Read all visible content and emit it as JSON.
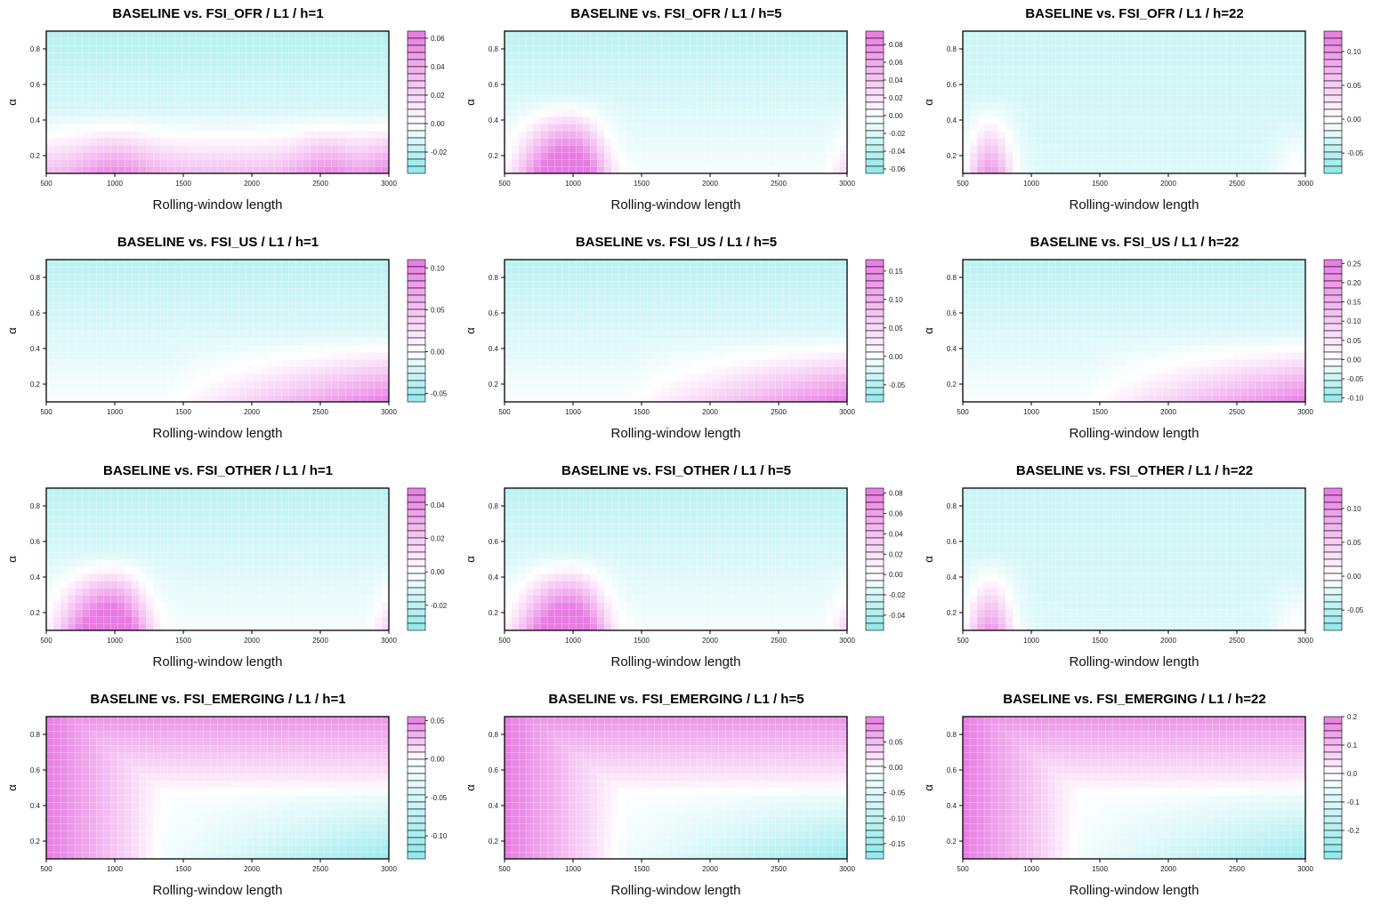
{
  "colors": {
    "low": "#8fe8ea",
    "mid": "#ffffff",
    "high": "#e87ae3",
    "axis": "#000000"
  },
  "chart_data": [
    {
      "type": "heatmap",
      "title": "BASELINE vs. FSI_OFR / L1 / h=1",
      "xlabel": "Rolling-window length",
      "ylabel": "α",
      "x_ticks": [
        500,
        1000,
        1500,
        2000,
        2500,
        3000
      ],
      "y_ticks": [
        0.2,
        0.4,
        0.6,
        0.8
      ],
      "xlim": [
        500,
        3000
      ],
      "ylim": [
        0.1,
        0.9
      ],
      "zlim": [
        -0.035,
        0.065
      ],
      "colorbar_ticks": [
        "0.06",
        "0.04",
        "0.02",
        "0.00",
        "-0.02"
      ],
      "colorbar_values": [
        0.06,
        0.04,
        0.02,
        0.0,
        -0.02
      ],
      "pattern": "lowband"
    },
    {
      "type": "heatmap",
      "title": "BASELINE vs. FSI_OFR / L1 / h=5",
      "xlabel": "Rolling-window length",
      "ylabel": "α",
      "x_ticks": [
        500,
        1000,
        1500,
        2000,
        2500,
        3000
      ],
      "y_ticks": [
        0.2,
        0.4,
        0.6,
        0.8
      ],
      "xlim": [
        500,
        3000
      ],
      "ylim": [
        0.1,
        0.9
      ],
      "zlim": [
        -0.065,
        0.095
      ],
      "colorbar_ticks": [
        "0.08",
        "0.06",
        "0.04",
        "0.02",
        "0.00",
        "-0.02",
        "-0.04",
        "-0.06"
      ],
      "colorbar_values": [
        0.08,
        0.06,
        0.04,
        0.02,
        0.0,
        -0.02,
        -0.04,
        -0.06
      ],
      "pattern": "bumps"
    },
    {
      "type": "heatmap",
      "title": "BASELINE vs. FSI_OFR / L1 / h=22",
      "xlabel": "Rolling-window length",
      "ylabel": "α",
      "x_ticks": [
        500,
        1000,
        1500,
        2000,
        2500,
        3000
      ],
      "y_ticks": [
        0.2,
        0.4,
        0.6,
        0.8
      ],
      "xlim": [
        500,
        3000
      ],
      "ylim": [
        0.1,
        0.9
      ],
      "zlim": [
        -0.08,
        0.13
      ],
      "colorbar_ticks": [
        "0.10",
        "0.05",
        "0.00",
        "-0.05"
      ],
      "colorbar_values": [
        0.1,
        0.05,
        0.0,
        -0.05
      ],
      "pattern": "leftspike"
    },
    {
      "type": "heatmap",
      "title": "BASELINE vs. FSI_US / L1 / h=1",
      "xlabel": "Rolling-window length",
      "ylabel": "α",
      "x_ticks": [
        500,
        1000,
        1500,
        2000,
        2500,
        3000
      ],
      "y_ticks": [
        0.2,
        0.4,
        0.6,
        0.8
      ],
      "xlim": [
        500,
        3000
      ],
      "ylim": [
        0.1,
        0.9
      ],
      "zlim": [
        -0.06,
        0.11
      ],
      "colorbar_ticks": [
        "0.10",
        "0.05",
        "0.00",
        "-0.05"
      ],
      "colorbar_values": [
        0.1,
        0.05,
        0.0,
        -0.05
      ],
      "pattern": "rightramp"
    },
    {
      "type": "heatmap",
      "title": "BASELINE vs. FSI_US / L1 / h=5",
      "xlabel": "Rolling-window length",
      "ylabel": "α",
      "x_ticks": [
        500,
        1000,
        1500,
        2000,
        2500,
        3000
      ],
      "y_ticks": [
        0.2,
        0.4,
        0.6,
        0.8
      ],
      "xlim": [
        500,
        3000
      ],
      "ylim": [
        0.1,
        0.9
      ],
      "zlim": [
        -0.08,
        0.17
      ],
      "colorbar_ticks": [
        "0.15",
        "0.10",
        "0.05",
        "0.00",
        "-0.05"
      ],
      "colorbar_values": [
        0.15,
        0.1,
        0.05,
        0.0,
        -0.05
      ],
      "pattern": "rightramp"
    },
    {
      "type": "heatmap",
      "title": "BASELINE vs. FSI_US / L1 / h=22",
      "xlabel": "Rolling-window length",
      "ylabel": "α",
      "x_ticks": [
        500,
        1000,
        1500,
        2000,
        2500,
        3000
      ],
      "y_ticks": [
        0.2,
        0.4,
        0.6,
        0.8
      ],
      "xlim": [
        500,
        3000
      ],
      "ylim": [
        0.1,
        0.9
      ],
      "zlim": [
        -0.11,
        0.26
      ],
      "colorbar_ticks": [
        "0.25",
        "0.20",
        "0.15",
        "0.10",
        "0.05",
        "0.00",
        "-0.05",
        "-0.10"
      ],
      "colorbar_values": [
        0.25,
        0.2,
        0.15,
        0.1,
        0.05,
        0.0,
        -0.05,
        -0.1
      ],
      "pattern": "rightramp"
    },
    {
      "type": "heatmap",
      "title": "BASELINE vs. FSI_OTHER / L1 / h=1",
      "xlabel": "Rolling-window length",
      "ylabel": "α",
      "x_ticks": [
        500,
        1000,
        1500,
        2000,
        2500,
        3000
      ],
      "y_ticks": [
        0.2,
        0.4,
        0.6,
        0.8
      ],
      "xlim": [
        500,
        3000
      ],
      "ylim": [
        0.1,
        0.9
      ],
      "zlim": [
        -0.035,
        0.05
      ],
      "colorbar_ticks": [
        "0.04",
        "0.02",
        "0.00",
        "-0.02"
      ],
      "colorbar_values": [
        0.04,
        0.02,
        0.0,
        -0.02
      ],
      "pattern": "bumps"
    },
    {
      "type": "heatmap",
      "title": "BASELINE vs. FSI_OTHER / L1 / h=5",
      "xlabel": "Rolling-window length",
      "ylabel": "α",
      "x_ticks": [
        500,
        1000,
        1500,
        2000,
        2500,
        3000
      ],
      "y_ticks": [
        0.2,
        0.4,
        0.6,
        0.8
      ],
      "xlim": [
        500,
        3000
      ],
      "ylim": [
        0.1,
        0.9
      ],
      "zlim": [
        -0.055,
        0.085
      ],
      "colorbar_ticks": [
        "0.08",
        "0.06",
        "0.04",
        "0.02",
        "0.00",
        "-0.02",
        "-0.04"
      ],
      "colorbar_values": [
        0.08,
        0.06,
        0.04,
        0.02,
        0.0,
        -0.02,
        -0.04
      ],
      "pattern": "bumps"
    },
    {
      "type": "heatmap",
      "title": "BASELINE vs. FSI_OTHER / L1 / h=22",
      "xlabel": "Rolling-window length",
      "ylabel": "α",
      "x_ticks": [
        500,
        1000,
        1500,
        2000,
        2500,
        3000
      ],
      "y_ticks": [
        0.2,
        0.4,
        0.6,
        0.8
      ],
      "xlim": [
        500,
        3000
      ],
      "ylim": [
        0.1,
        0.9
      ],
      "zlim": [
        -0.08,
        0.13
      ],
      "colorbar_ticks": [
        "0.10",
        "0.05",
        "0.00",
        "-0.05"
      ],
      "colorbar_values": [
        0.1,
        0.05,
        0.0,
        -0.05
      ],
      "pattern": "leftspike"
    },
    {
      "type": "heatmap",
      "title": "BASELINE vs. FSI_EMERGING / L1 / h=1",
      "xlabel": "Rolling-window length",
      "ylabel": "α",
      "x_ticks": [
        500,
        1000,
        1500,
        2000,
        2500,
        3000
      ],
      "y_ticks": [
        0.2,
        0.4,
        0.6,
        0.8
      ],
      "xlim": [
        500,
        3000
      ],
      "ylim": [
        0.1,
        0.9
      ],
      "zlim": [
        -0.13,
        0.055
      ],
      "colorbar_ticks": [
        "0.05",
        "0.00",
        "-0.05",
        "-0.10"
      ],
      "colorbar_values": [
        0.05,
        0.0,
        -0.05,
        -0.1
      ],
      "pattern": "emerging"
    },
    {
      "type": "heatmap",
      "title": "BASELINE vs. FSI_EMERGING / L1 / h=5",
      "xlabel": "Rolling-window length",
      "ylabel": "α",
      "x_ticks": [
        500,
        1000,
        1500,
        2000,
        2500,
        3000
      ],
      "y_ticks": [
        0.2,
        0.4,
        0.6,
        0.8
      ],
      "xlim": [
        500,
        3000
      ],
      "ylim": [
        0.1,
        0.9
      ],
      "zlim": [
        -0.18,
        0.1
      ],
      "colorbar_ticks": [
        "0.05",
        "0.00",
        "-0.05",
        "-0.10",
        "-0.15"
      ],
      "colorbar_values": [
        0.05,
        0.0,
        -0.05,
        -0.1,
        -0.15
      ],
      "pattern": "emerging"
    },
    {
      "type": "heatmap",
      "title": "BASELINE vs. FSI_EMERGING / L1 / h=22",
      "xlabel": "Rolling-window length",
      "ylabel": "α",
      "x_ticks": [
        500,
        1000,
        1500,
        2000,
        2500,
        3000
      ],
      "y_ticks": [
        0.2,
        0.4,
        0.6,
        0.8
      ],
      "xlim": [
        500,
        3000
      ],
      "ylim": [
        0.1,
        0.9
      ],
      "zlim": [
        -0.3,
        0.2
      ],
      "colorbar_ticks": [
        "0.2",
        "0.1",
        "0.0",
        "-0.1",
        "-0.2"
      ],
      "colorbar_values": [
        0.2,
        0.1,
        0.0,
        -0.1,
        -0.2
      ],
      "pattern": "emerging"
    }
  ]
}
